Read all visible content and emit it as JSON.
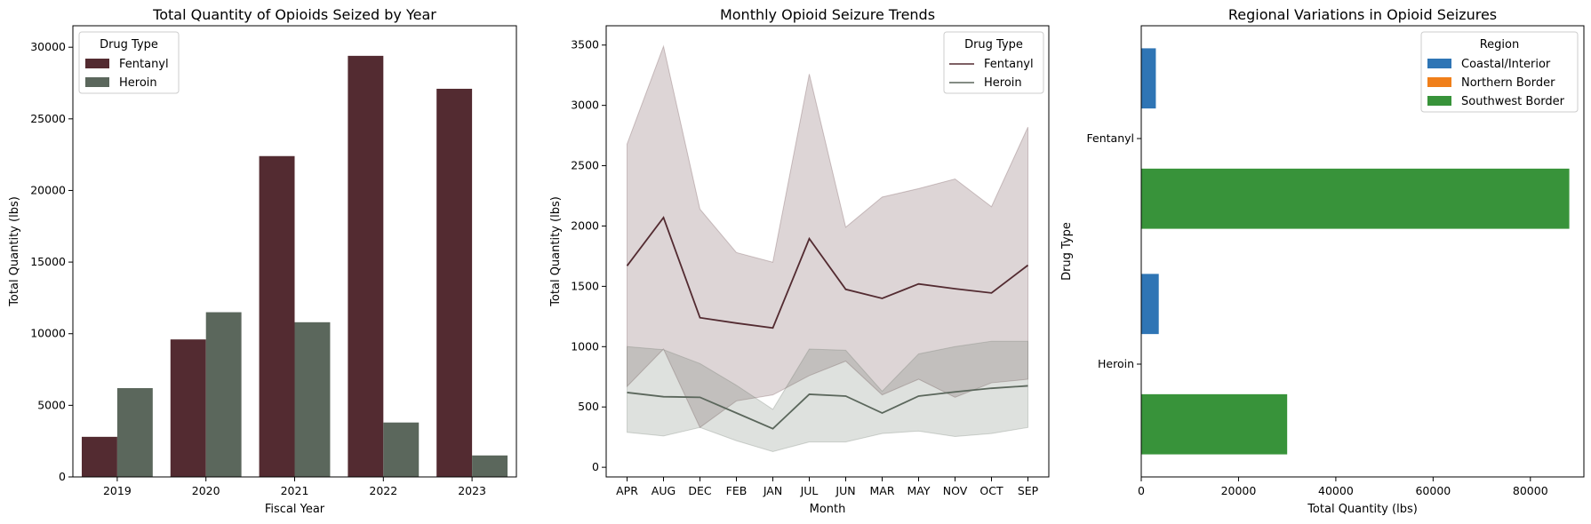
{
  "chart_data": [
    {
      "type": "bar",
      "title": "Total Quantity of Opioids Seized by Year",
      "xlabel": "Fiscal Year",
      "ylabel": "Total Quantity (lbs)",
      "ylim": [
        0,
        31500
      ],
      "yticks": [
        0,
        5000,
        10000,
        15000,
        20000,
        25000,
        30000
      ],
      "categories": [
        "2019",
        "2020",
        "2021",
        "2022",
        "2023"
      ],
      "legend_title": "Drug Type",
      "legend_position": "top-left",
      "series": [
        {
          "name": "Fentanyl",
          "color": "#532b31",
          "values": [
            2800,
            9600,
            22400,
            29400,
            27100
          ]
        },
        {
          "name": "Heroin",
          "color": "#5b675c",
          "values": [
            6200,
            11500,
            10800,
            3800,
            1500
          ]
        }
      ]
    },
    {
      "type": "line",
      "title": "Monthly Opioid Seizure Trends",
      "xlabel": "Month",
      "ylabel": "Total Quantity (lbs)",
      "ylim": [
        -80,
        3660
      ],
      "yticks": [
        0,
        500,
        1000,
        1500,
        2000,
        2500,
        3000,
        3500
      ],
      "x": [
        "APR",
        "AUG",
        "DEC",
        "FEB",
        "JAN",
        "JUL",
        "JUN",
        "MAR",
        "MAY",
        "NOV",
        "OCT",
        "SEP"
      ],
      "legend_title": "Drug Type",
      "legend_position": "top-right",
      "series": [
        {
          "name": "Fentanyl",
          "color": "#532b31",
          "values": [
            1670,
            2070,
            1240,
            1195,
            1155,
            1895,
            1475,
            1400,
            1520,
            1480,
            1445,
            1675
          ],
          "upper": [
            2680,
            3490,
            2140,
            1780,
            1700,
            3260,
            1990,
            2240,
            2310,
            2390,
            2160,
            2820
          ],
          "lower": [
            670,
            980,
            330,
            550,
            600,
            760,
            880,
            600,
            730,
            580,
            700,
            730
          ]
        },
        {
          "name": "Heroin",
          "color": "#5b675c",
          "values": [
            620,
            585,
            580,
            450,
            320,
            605,
            590,
            450,
            590,
            625,
            655,
            675
          ],
          "upper": [
            1000,
            975,
            860,
            680,
            480,
            980,
            970,
            630,
            940,
            1000,
            1045,
            1045
          ],
          "lower": [
            290,
            260,
            330,
            220,
            130,
            210,
            210,
            280,
            300,
            255,
            280,
            330
          ]
        }
      ]
    },
    {
      "type": "bar",
      "orientation": "horizontal",
      "title": "Regional Variations in Opioid Seizures",
      "xlabel": "Total Quantity (lbs)",
      "ylabel": "Drug Type",
      "xlim": [
        0,
        91000
      ],
      "xticks": [
        0,
        20000,
        40000,
        60000,
        80000
      ],
      "categories": [
        "Fentanyl",
        "Heroin"
      ],
      "legend_title": "Region",
      "legend_position": "top-right",
      "series": [
        {
          "name": "Coastal/Interior",
          "color": "#2f75b5",
          "values": [
            3000,
            3600
          ]
        },
        {
          "name": "Northern Border",
          "color": "#f07f1a",
          "values": [
            20,
            15
          ]
        },
        {
          "name": "Southwest Border",
          "color": "#38933a",
          "values": [
            88000,
            30000
          ]
        }
      ]
    }
  ]
}
